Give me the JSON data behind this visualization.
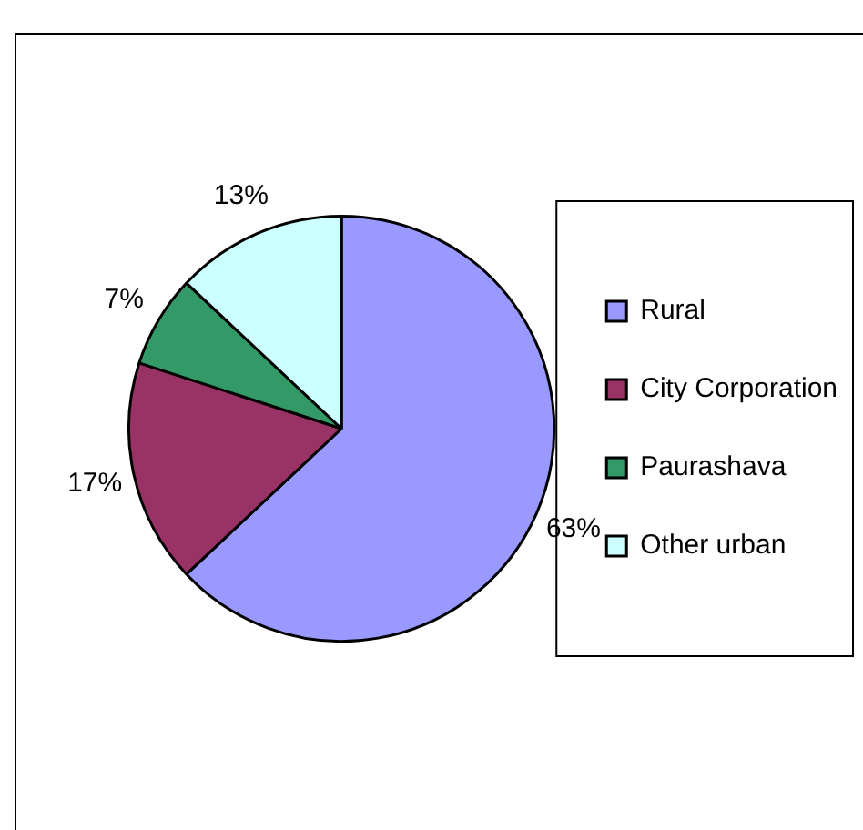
{
  "chart_data": {
    "type": "pie",
    "categories": [
      "Rural",
      "City Corporation",
      "Paurashava",
      "Other urban"
    ],
    "values": [
      63,
      17,
      7,
      13
    ],
    "colors": [
      "#9999ff",
      "#993366",
      "#339966",
      "#ccffff"
    ],
    "legend": "right",
    "value_labels": [
      "63%",
      "17%",
      "7%",
      "13%"
    ]
  }
}
